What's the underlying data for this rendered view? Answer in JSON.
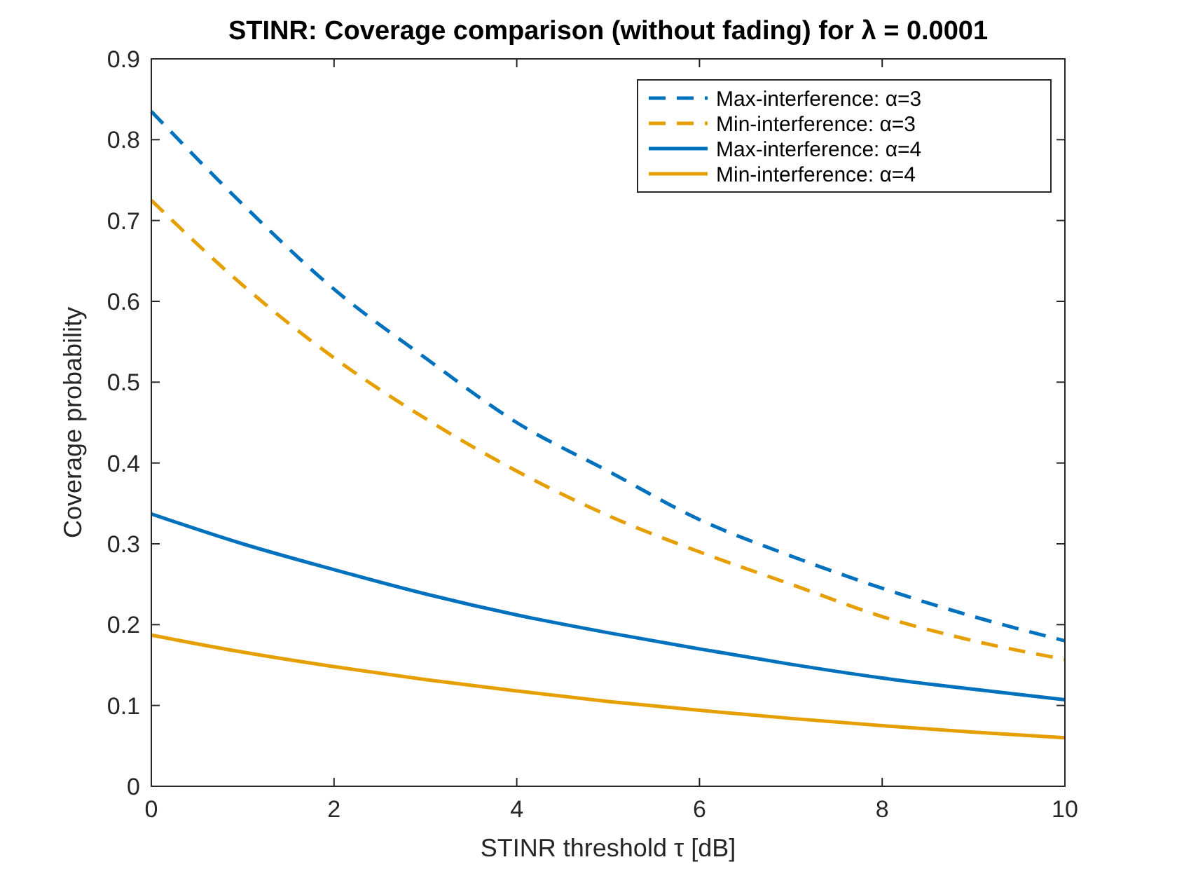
{
  "chart_data": {
    "type": "line",
    "title": "STINR: Coverage comparison (without fading) for λ = 0.0001",
    "xlabel": "STINR threshold τ [dB]",
    "ylabel": "Coverage probability",
    "x": [
      0,
      1,
      2,
      3,
      4,
      5,
      6,
      7,
      8,
      9,
      10
    ],
    "series": [
      {
        "name": "Max-interference: α=3",
        "color": "#0072bd",
        "line_style": "dashed",
        "values": [
          0.835,
          0.72,
          0.615,
          0.53,
          0.45,
          0.39,
          0.33,
          0.285,
          0.245,
          0.21,
          0.18
        ]
      },
      {
        "name": "Min-interference: α=3",
        "color": "#e69f00",
        "line_style": "dashed",
        "values": [
          0.725,
          0.62,
          0.53,
          0.455,
          0.39,
          0.335,
          0.29,
          0.25,
          0.21,
          0.18,
          0.157
        ]
      },
      {
        "name": "Max-interference: α=4",
        "color": "#0072bd",
        "line_style": "solid",
        "values": [
          0.337,
          0.3,
          0.268,
          0.238,
          0.212,
          0.19,
          0.17,
          0.151,
          0.134,
          0.12,
          0.107
        ]
      },
      {
        "name": "Min-interference: α=4",
        "color": "#e69f00",
        "line_style": "solid",
        "values": [
          0.187,
          0.166,
          0.148,
          0.132,
          0.118,
          0.105,
          0.094,
          0.084,
          0.075,
          0.067,
          0.06
        ]
      }
    ],
    "xlim": [
      0,
      10
    ],
    "xticks": [
      0,
      2,
      4,
      6,
      8,
      10
    ],
    "ylim": [
      0,
      0.9
    ],
    "yticks": [
      0,
      0.1,
      0.2,
      0.3,
      0.4,
      0.5,
      0.6,
      0.7,
      0.8,
      0.9
    ],
    "grid": false,
    "legend": "top right",
    "marker": "none"
  }
}
